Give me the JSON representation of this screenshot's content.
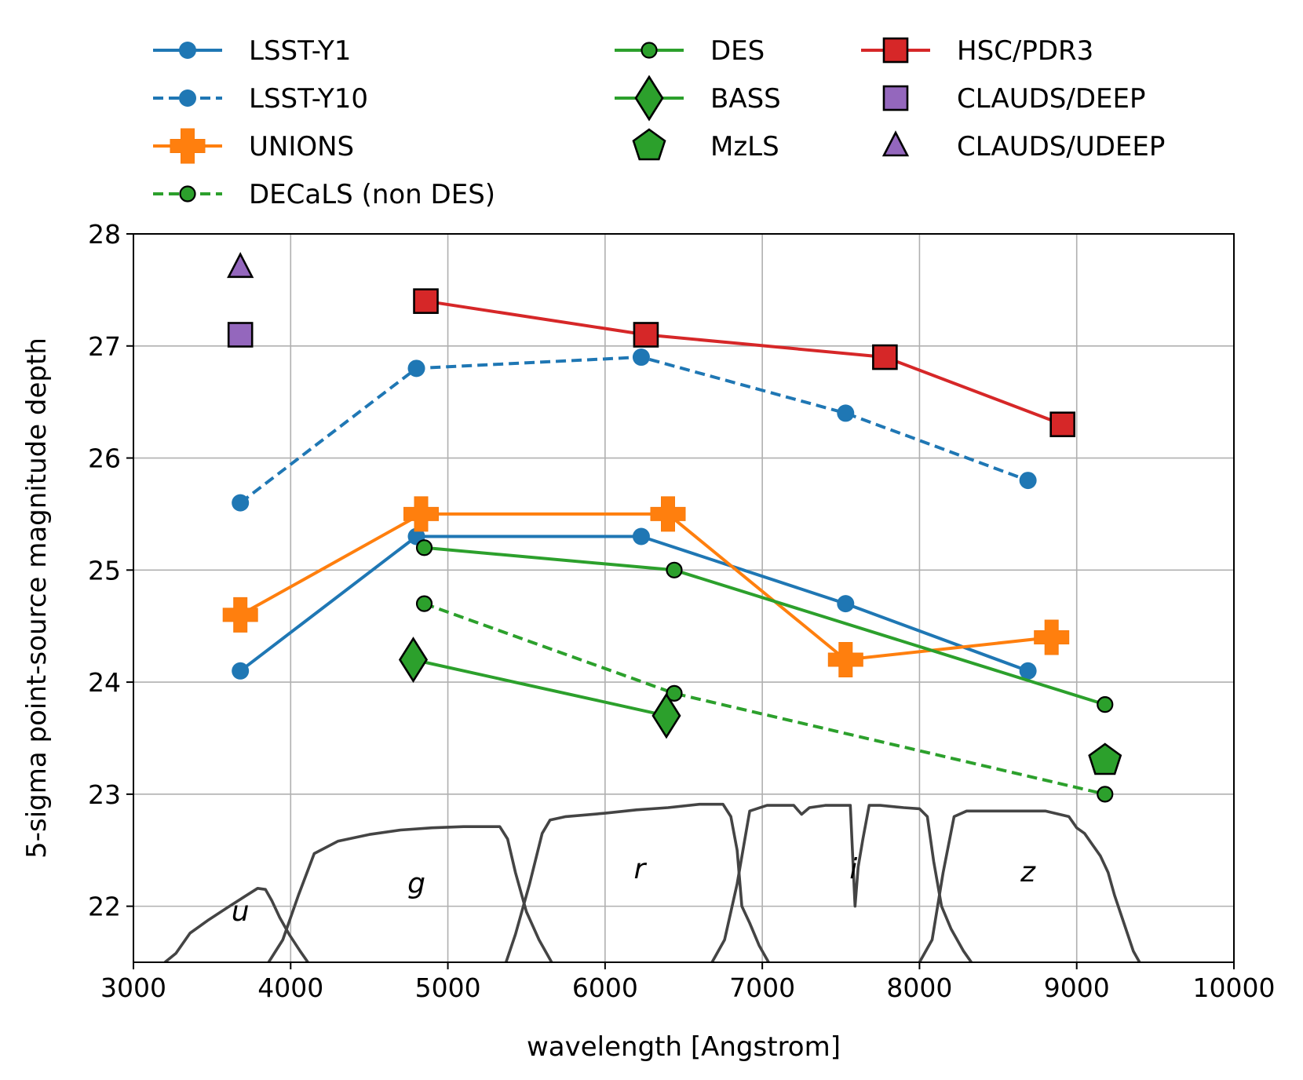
{
  "chart_data": {
    "type": "line",
    "title": "",
    "xlabel": "wavelength [Angstrom]",
    "ylabel": "5-sigma point-source magnitude depth",
    "xlim": [
      3000,
      10000
    ],
    "ylim": [
      21.5,
      28
    ],
    "xticks": [
      3000,
      4000,
      5000,
      6000,
      7000,
      8000,
      9000,
      10000
    ],
    "yticks": [
      22,
      23,
      24,
      25,
      26,
      27,
      28
    ],
    "grid": true,
    "legend_position": "top, outside plot, 3 columns",
    "series": [
      {
        "name": "LSST-Y1",
        "color": "#1f77b4",
        "line": "solid",
        "marker": "circle",
        "x": [
          3680,
          4800,
          6230,
          7530,
          8690
        ],
        "y": [
          24.1,
          25.3,
          25.3,
          24.7,
          24.1
        ]
      },
      {
        "name": "LSST-Y10",
        "color": "#1f77b4",
        "line": "dashed",
        "marker": "circle",
        "x": [
          3680,
          4800,
          6230,
          7530,
          8690
        ],
        "y": [
          25.6,
          26.8,
          26.9,
          26.4,
          25.8
        ]
      },
      {
        "name": "UNIONS",
        "color": "#ff7f0e",
        "line": "solid",
        "marker": "plus",
        "x": [
          3680,
          4830,
          6400,
          7530,
          8840
        ],
        "y": [
          24.6,
          25.5,
          25.5,
          24.2,
          24.4
        ]
      },
      {
        "name": "DECaLS (non DES)",
        "color": "#2ca02c",
        "line": "dashed",
        "marker": "circle-edge",
        "x": [
          4850,
          6440,
          9180
        ],
        "y": [
          24.7,
          23.9,
          23.0
        ]
      },
      {
        "name": "DES",
        "color": "#2ca02c",
        "line": "solid",
        "marker": "circle-edge",
        "x": [
          4850,
          6440,
          9180
        ],
        "y": [
          25.2,
          25.0,
          23.8
        ]
      },
      {
        "name": "BASS",
        "color": "#2ca02c",
        "line": "solid",
        "marker": "diamond",
        "x": [
          4780,
          6390
        ],
        "y": [
          24.2,
          23.7
        ]
      },
      {
        "name": "MzLS",
        "color": "#2ca02c",
        "line": "none",
        "marker": "pentagon",
        "x": [
          9180
        ],
        "y": [
          23.3
        ]
      },
      {
        "name": "HSC/PDR3",
        "color": "#d62728",
        "line": "solid",
        "marker": "square",
        "x": [
          4860,
          6260,
          7780,
          8910
        ],
        "y": [
          27.4,
          27.1,
          26.9,
          26.3
        ]
      },
      {
        "name": "CLAUDS/DEEP",
        "color": "#9467bd",
        "line": "none",
        "marker": "square",
        "x": [
          3680
        ],
        "y": [
          27.1
        ]
      },
      {
        "name": "CLAUDS/UDEEP",
        "color": "#9467bd",
        "line": "none",
        "marker": "triangle",
        "x": [
          3680
        ],
        "y": [
          27.7
        ]
      }
    ],
    "legend_columns": [
      [
        "LSST-Y1",
        "LSST-Y10",
        "UNIONS",
        "DECaLS (non DES)"
      ],
      [
        "DES",
        "BASS",
        "MzLS"
      ],
      [
        "HSC/PDR3",
        "CLAUDS/DEEP",
        "CLAUDS/UDEEP"
      ]
    ],
    "filter_curves": {
      "color": "#444444",
      "labels": [
        {
          "text": "u",
          "x": 3680,
          "y": 21.87
        },
        {
          "text": "g",
          "x": 4800,
          "y": 22.12
        },
        {
          "text": "r",
          "x": 6220,
          "y": 22.25
        },
        {
          "text": "i",
          "x": 7580,
          "y": 22.25
        },
        {
          "text": "z",
          "x": 8690,
          "y": 22.22
        }
      ],
      "curves": [
        {
          "band": "u",
          "x": [
            3200,
            3270,
            3360,
            3480,
            3600,
            3700,
            3790,
            3840,
            3880,
            3930,
            3990,
            4060,
            4110
          ],
          "y": [
            21.5,
            21.58,
            21.76,
            21.88,
            21.99,
            22.08,
            22.16,
            22.15,
            22.05,
            21.9,
            21.75,
            21.6,
            21.5
          ]
        },
        {
          "band": "g",
          "x": [
            3860,
            3950,
            4050,
            4150,
            4300,
            4500,
            4700,
            4900,
            5100,
            5250,
            5330,
            5380,
            5430,
            5500,
            5580,
            5660
          ],
          "y": [
            21.5,
            21.7,
            22.1,
            22.47,
            22.58,
            22.64,
            22.68,
            22.7,
            22.71,
            22.71,
            22.71,
            22.6,
            22.3,
            21.95,
            21.7,
            21.5
          ]
        },
        {
          "band": "r",
          "x": [
            5370,
            5430,
            5520,
            5600,
            5650,
            5750,
            6000,
            6200,
            6400,
            6600,
            6750,
            6800,
            6840,
            6870,
            6920,
            6980,
            7040
          ],
          "y": [
            21.5,
            21.75,
            22.2,
            22.65,
            22.77,
            22.8,
            22.83,
            22.86,
            22.88,
            22.91,
            22.91,
            22.8,
            22.5,
            22.0,
            21.85,
            21.65,
            21.5
          ]
        },
        {
          "band": "i",
          "x": [
            6680,
            6760,
            6840,
            6920,
            7030,
            7200,
            7250,
            7300,
            7400,
            7560,
            7590,
            7610,
            7640,
            7680,
            7750,
            7900,
            8000,
            8050,
            8090,
            8140,
            8200,
            8280,
            8330
          ],
          "y": [
            21.5,
            21.7,
            22.2,
            22.85,
            22.9,
            22.9,
            22.82,
            22.88,
            22.9,
            22.9,
            22.0,
            22.35,
            22.6,
            22.9,
            22.9,
            22.88,
            22.87,
            22.8,
            22.4,
            22.0,
            21.8,
            21.6,
            21.5
          ]
        },
        {
          "band": "z",
          "x": [
            8000,
            8080,
            8150,
            8220,
            8300,
            8500,
            8800,
            8950,
            9000,
            9050,
            9100,
            9150,
            9200,
            9240,
            9300,
            9360,
            9400
          ],
          "y": [
            21.5,
            21.7,
            22.3,
            22.8,
            22.85,
            22.85,
            22.85,
            22.8,
            22.7,
            22.65,
            22.55,
            22.45,
            22.3,
            22.1,
            21.85,
            21.6,
            21.5
          ]
        }
      ]
    }
  }
}
